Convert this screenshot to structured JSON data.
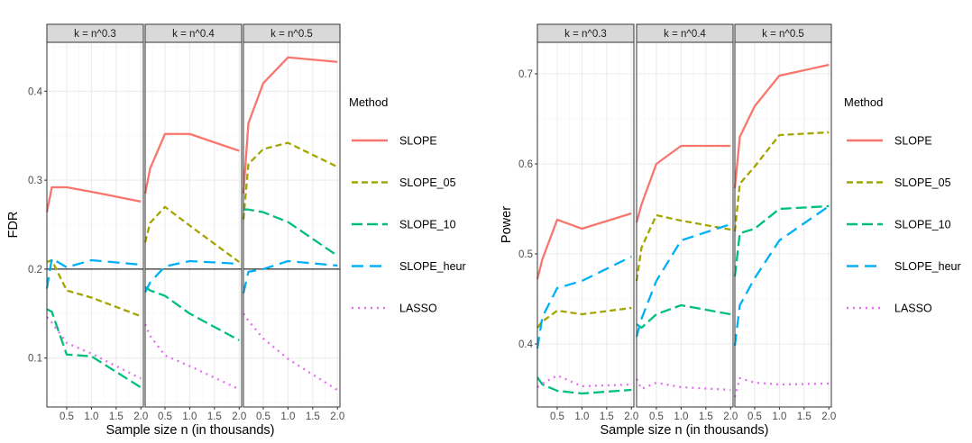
{
  "chart_data": [
    {
      "type": "line",
      "facet_labels": [
        "k = n^0.3",
        "k = n^0.4",
        "k = n^0.5"
      ],
      "xlabel": "Sample size n (in thousands)",
      "ylabel": "FDR",
      "xlim": [
        0.1,
        2.05
      ],
      "ylim": [
        0.045,
        0.455
      ],
      "xticks": [
        0.5,
        1.0,
        1.5,
        2.0
      ],
      "xtick_labels": [
        "0.5",
        "1.0",
        "1.5",
        "2.0"
      ],
      "yticks": [
        0.1,
        0.2,
        0.3,
        0.4
      ],
      "ytick_labels": [
        "0.1",
        "0.2",
        "0.3",
        "0.4"
      ],
      "hline": 0.2,
      "grid": true,
      "legend": {
        "title": "Method",
        "position": "right",
        "entries": [
          "SLOPE",
          "SLOPE_05",
          "SLOPE_10",
          "SLOPE_heur",
          "LASSO"
        ]
      },
      "x": [
        0.1,
        0.2,
        0.5,
        1.0,
        2.0
      ],
      "facets": [
        {
          "label": "k = n^0.3",
          "series": [
            {
              "name": "SLOPE",
              "values": [
                0.264,
                0.292,
                0.292,
                0.287,
                0.276
              ]
            },
            {
              "name": "SLOPE_05",
              "values": [
                0.208,
                0.21,
                0.176,
                0.168,
                0.147
              ]
            },
            {
              "name": "SLOPE_10",
              "values": [
                0.155,
                0.152,
                0.104,
                0.102,
                0.067
              ]
            },
            {
              "name": "SLOPE_heur",
              "values": [
                0.178,
                0.212,
                0.202,
                0.21,
                0.205
              ]
            },
            {
              "name": "LASSO",
              "values": [
                0.146,
                0.14,
                0.117,
                0.105,
                0.077
              ]
            }
          ]
        },
        {
          "label": "k = n^0.4",
          "series": [
            {
              "name": "SLOPE",
              "values": [
                0.285,
                0.313,
                0.352,
                0.352,
                0.333
              ]
            },
            {
              "name": "SLOPE_05",
              "values": [
                0.23,
                0.252,
                0.27,
                0.249,
                0.208
              ]
            },
            {
              "name": "SLOPE_10",
              "values": [
                0.18,
                0.176,
                0.17,
                0.15,
                0.12
              ]
            },
            {
              "name": "SLOPE_heur",
              "values": [
                0.174,
                0.185,
                0.203,
                0.209,
                0.206
              ]
            },
            {
              "name": "LASSO",
              "values": [
                0.138,
                0.125,
                0.103,
                0.091,
                0.065
              ]
            }
          ]
        },
        {
          "label": "k = n^0.5",
          "series": [
            {
              "name": "SLOPE",
              "values": [
                0.285,
                0.364,
                0.409,
                0.438,
                0.433
              ]
            },
            {
              "name": "SLOPE_05",
              "values": [
                0.256,
                0.318,
                0.335,
                0.342,
                0.315
              ]
            },
            {
              "name": "SLOPE_10",
              "values": [
                0.267,
                0.267,
                0.264,
                0.253,
                0.215
              ]
            },
            {
              "name": "SLOPE_heur",
              "values": [
                0.173,
                0.197,
                0.2,
                0.209,
                0.204
              ]
            },
            {
              "name": "LASSO",
              "values": [
                0.15,
                0.142,
                0.122,
                0.099,
                0.064
              ]
            }
          ]
        }
      ]
    },
    {
      "type": "line",
      "facet_labels": [
        "k = n^0.3",
        "k = n^0.4",
        "k = n^0.5"
      ],
      "xlabel": "Sample size n (in thousands)",
      "ylabel": "Power",
      "xlim": [
        0.1,
        2.05
      ],
      "ylim": [
        0.33,
        0.735
      ],
      "xticks": [
        0.5,
        1.0,
        1.5,
        2.0
      ],
      "xtick_labels": [
        "0.5",
        "1.0",
        "1.5",
        "2.0"
      ],
      "yticks": [
        0.4,
        0.5,
        0.6,
        0.7
      ],
      "ytick_labels": [
        "0.4",
        "0.5",
        "0.6",
        "0.7"
      ],
      "grid": true,
      "legend": {
        "title": "Method",
        "position": "right",
        "entries": [
          "SLOPE",
          "SLOPE_05",
          "SLOPE_10",
          "SLOPE_heur",
          "LASSO"
        ]
      },
      "x": [
        0.1,
        0.2,
        0.5,
        1.0,
        2.0
      ],
      "facets": [
        {
          "label": "k = n^0.3",
          "series": [
            {
              "name": "SLOPE",
              "values": [
                0.472,
                0.494,
                0.538,
                0.528,
                0.545
              ]
            },
            {
              "name": "SLOPE_05",
              "values": [
                0.418,
                0.425,
                0.437,
                0.433,
                0.44
              ]
            },
            {
              "name": "SLOPE_10",
              "values": [
                0.363,
                0.355,
                0.348,
                0.345,
                0.349
              ]
            },
            {
              "name": "SLOPE_heur",
              "values": [
                0.395,
                0.43,
                0.462,
                0.47,
                0.497
              ]
            },
            {
              "name": "LASSO",
              "values": [
                0.352,
                0.356,
                0.365,
                0.353,
                0.355
              ]
            }
          ]
        },
        {
          "label": "k = n^0.4",
          "series": [
            {
              "name": "SLOPE",
              "values": [
                0.535,
                0.555,
                0.6,
                0.62,
                0.62
              ]
            },
            {
              "name": "SLOPE_05",
              "values": [
                0.47,
                0.507,
                0.543,
                0.537,
                0.527
              ]
            },
            {
              "name": "SLOPE_10",
              "values": [
                0.422,
                0.418,
                0.433,
                0.443,
                0.433
              ]
            },
            {
              "name": "SLOPE_heur",
              "values": [
                0.408,
                0.428,
                0.47,
                0.515,
                0.533
              ]
            },
            {
              "name": "LASSO",
              "values": [
                0.361,
                0.35,
                0.357,
                0.352,
                0.349
              ]
            }
          ]
        },
        {
          "label": "k = n^0.5",
          "series": [
            {
              "name": "SLOPE",
              "values": [
                0.573,
                0.63,
                0.664,
                0.698,
                0.71
              ]
            },
            {
              "name": "SLOPE_05",
              "values": [
                0.525,
                0.578,
                0.597,
                0.632,
                0.635
              ]
            },
            {
              "name": "SLOPE_10",
              "values": [
                0.475,
                0.523,
                0.528,
                0.55,
                0.553
              ]
            },
            {
              "name": "SLOPE_heur",
              "values": [
                0.398,
                0.443,
                0.473,
                0.515,
                0.553
              ]
            },
            {
              "name": "LASSO",
              "values": [
                0.341,
                0.362,
                0.357,
                0.355,
                0.356
              ]
            }
          ]
        }
      ]
    }
  ],
  "styles": {
    "SLOPE": {
      "color": "#F8766D",
      "dash": ""
    },
    "SLOPE_05": {
      "color": "#A3A500",
      "dash": "7,4"
    },
    "SLOPE_10": {
      "color": "#00BF7D",
      "dash": "12,5"
    },
    "SLOPE_heur": {
      "color": "#00B0F6",
      "dash": "13,7"
    },
    "LASSO": {
      "color": "#E76BF3",
      "dash": "2,5"
    }
  },
  "colors": {
    "panel_border": "#333333",
    "strip_fill": "#D9D9D9",
    "grid_major": "#EBEBEB",
    "grid_minor": "#F5F5F5",
    "axis_text": "#4D4D4D",
    "text": "#000000"
  }
}
